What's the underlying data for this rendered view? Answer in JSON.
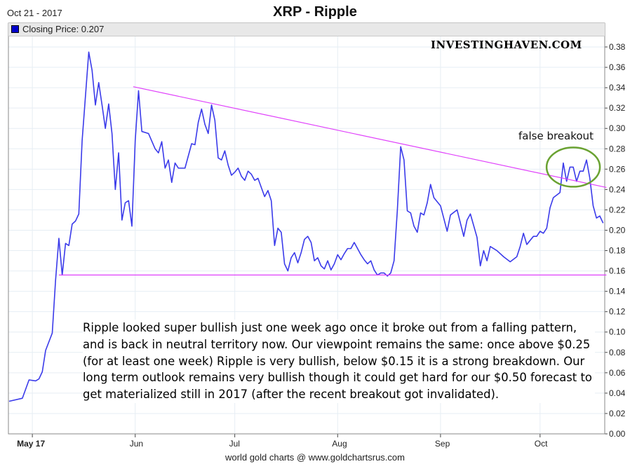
{
  "header": {
    "date": "Oct 21 - 2017",
    "title": "XRP - Ripple"
  },
  "legend": {
    "label": "Closing Price: 0.207",
    "color": "#0000cc"
  },
  "watermark": "INVESTINGHAVEN.COM",
  "annotation_label": "false breakout",
  "commentary": "Ripple looked super bullish just one week ago once it broke out from a falling pattern, and is back in neutral territory now. Our viewpoint remains the same: once above $0.25 (for at least one week) Ripple is very bullish, below $0.15 it is a strong breakdown. Our long term outlook remains very bullish though it could get hard for our $0.50 forecast to get materialized still in 2017 (after the recent breakout got invalidated).",
  "footer": "world gold charts @ www.goldchartsrus.com",
  "chart_data": {
    "type": "line",
    "title": "XRP - Ripple",
    "xlabel": "",
    "ylabel": "",
    "x_unit": "days since Apr 24, 2017",
    "xlim": [
      0,
      180
    ],
    "ylim": [
      0,
      0.39
    ],
    "yticks": [
      "0.00",
      "0.02",
      "0.04",
      "0.06",
      "0.08",
      "0.10",
      "0.12",
      "0.14",
      "0.16",
      "0.18",
      "0.20",
      "0.22",
      "0.24",
      "0.26",
      "0.28",
      "0.30",
      "0.32",
      "0.34",
      "0.36",
      "0.38"
    ],
    "xticks": [
      {
        "label": "May 17",
        "day": 7,
        "bold": true
      },
      {
        "label": "Jun",
        "day": 38
      },
      {
        "label": "Jul",
        "day": 68
      },
      {
        "label": "Aug",
        "day": 99
      },
      {
        "label": "Sep",
        "day": 130
      },
      {
        "label": "Oct",
        "day": 160
      }
    ],
    "grid": true,
    "series": [
      {
        "name": "Closing Price",
        "color": "#3b3bea",
        "points": [
          [
            0,
            0.032
          ],
          [
            4,
            0.035
          ],
          [
            6,
            0.053
          ],
          [
            8,
            0.052
          ],
          [
            9,
            0.054
          ],
          [
            10,
            0.061
          ],
          [
            11,
            0.082
          ],
          [
            13,
            0.099
          ],
          [
            14,
            0.151
          ],
          [
            15,
            0.192
          ],
          [
            16,
            0.156
          ],
          [
            17,
            0.187
          ],
          [
            18,
            0.185
          ],
          [
            19,
            0.206
          ],
          [
            20,
            0.209
          ],
          [
            21,
            0.216
          ],
          [
            22,
            0.288
          ],
          [
            24,
            0.375
          ],
          [
            25,
            0.357
          ],
          [
            26,
            0.323
          ],
          [
            27,
            0.345
          ],
          [
            28,
            0.323
          ],
          [
            29,
            0.3
          ],
          [
            30,
            0.324
          ],
          [
            31,
            0.295
          ],
          [
            32,
            0.24
          ],
          [
            33,
            0.276
          ],
          [
            34,
            0.21
          ],
          [
            35,
            0.227
          ],
          [
            36,
            0.229
          ],
          [
            37,
            0.204
          ],
          [
            38,
            0.288
          ],
          [
            39,
            0.337
          ],
          [
            40,
            0.297
          ],
          [
            42,
            0.295
          ],
          [
            44,
            0.28
          ],
          [
            45,
            0.276
          ],
          [
            46,
            0.287
          ],
          [
            47,
            0.261
          ],
          [
            48,
            0.269
          ],
          [
            49,
            0.247
          ],
          [
            50,
            0.266
          ],
          [
            51,
            0.261
          ],
          [
            53,
            0.261
          ],
          [
            55,
            0.285
          ],
          [
            56,
            0.284
          ],
          [
            57,
            0.306
          ],
          [
            58,
            0.319
          ],
          [
            59,
            0.304
          ],
          [
            60,
            0.295
          ],
          [
            61,
            0.323
          ],
          [
            62,
            0.308
          ],
          [
            63,
            0.271
          ],
          [
            64,
            0.269
          ],
          [
            65,
            0.278
          ],
          [
            66,
            0.264
          ],
          [
            67,
            0.254
          ],
          [
            68,
            0.257
          ],
          [
            69,
            0.261
          ],
          [
            70,
            0.253
          ],
          [
            71,
            0.249
          ],
          [
            72,
            0.258
          ],
          [
            73,
            0.255
          ],
          [
            74,
            0.249
          ],
          [
            75,
            0.251
          ],
          [
            76,
            0.242
          ],
          [
            77,
            0.233
          ],
          [
            78,
            0.239
          ],
          [
            79,
            0.229
          ],
          [
            80,
            0.185
          ],
          [
            81,
            0.202
          ],
          [
            82,
            0.198
          ],
          [
            83,
            0.167
          ],
          [
            84,
            0.16
          ],
          [
            85,
            0.173
          ],
          [
            86,
            0.178
          ],
          [
            87,
            0.168
          ],
          [
            88,
            0.178
          ],
          [
            89,
            0.191
          ],
          [
            90,
            0.194
          ],
          [
            91,
            0.188
          ],
          [
            92,
            0.17
          ],
          [
            93,
            0.173
          ],
          [
            94,
            0.165
          ],
          [
            95,
            0.162
          ],
          [
            96,
            0.17
          ],
          [
            97,
            0.161
          ],
          [
            98,
            0.167
          ],
          [
            99,
            0.176
          ],
          [
            100,
            0.171
          ],
          [
            101,
            0.177
          ],
          [
            102,
            0.182
          ],
          [
            103,
            0.182
          ],
          [
            104,
            0.188
          ],
          [
            105,
            0.182
          ],
          [
            106,
            0.176
          ],
          [
            107,
            0.171
          ],
          [
            108,
            0.167
          ],
          [
            109,
            0.17
          ],
          [
            110,
            0.161
          ],
          [
            111,
            0.156
          ],
          [
            112,
            0.158
          ],
          [
            113,
            0.158
          ],
          [
            114,
            0.155
          ],
          [
            115,
            0.158
          ],
          [
            116,
            0.17
          ],
          [
            117,
            0.22
          ],
          [
            118,
            0.282
          ],
          [
            119,
            0.269
          ],
          [
            120,
            0.219
          ],
          [
            121,
            0.217
          ],
          [
            122,
            0.204
          ],
          [
            123,
            0.198
          ],
          [
            124,
            0.217
          ],
          [
            125,
            0.215
          ],
          [
            126,
            0.227
          ],
          [
            127,
            0.245
          ],
          [
            128,
            0.232
          ],
          [
            130,
            0.224
          ],
          [
            132,
            0.199
          ],
          [
            133,
            0.215
          ],
          [
            135,
            0.22
          ],
          [
            137,
            0.194
          ],
          [
            138,
            0.21
          ],
          [
            139,
            0.216
          ],
          [
            141,
            0.193
          ],
          [
            142,
            0.165
          ],
          [
            143,
            0.18
          ],
          [
            144,
            0.17
          ],
          [
            145,
            0.184
          ],
          [
            147,
            0.18
          ],
          [
            149,
            0.174
          ],
          [
            151,
            0.169
          ],
          [
            153,
            0.174
          ],
          [
            154,
            0.184
          ],
          [
            155,
            0.197
          ],
          [
            156,
            0.186
          ],
          [
            158,
            0.194
          ],
          [
            159,
            0.194
          ],
          [
            160,
            0.199
          ],
          [
            161,
            0.197
          ],
          [
            162,
            0.202
          ],
          [
            163,
            0.222
          ],
          [
            164,
            0.232
          ],
          [
            166,
            0.237
          ],
          [
            167,
            0.266
          ],
          [
            168,
            0.248
          ],
          [
            169,
            0.262
          ],
          [
            170,
            0.262
          ],
          [
            171,
            0.248
          ],
          [
            172,
            0.258
          ],
          [
            173,
            0.258
          ],
          [
            174,
            0.269
          ],
          [
            175,
            0.251
          ],
          [
            176,
            0.224
          ],
          [
            177,
            0.212
          ],
          [
            178,
            0.214
          ],
          [
            179,
            0.207
          ]
        ]
      }
    ],
    "trendlines": [
      {
        "name": "falling-resistance",
        "color": "#e040fb",
        "from": [
          37.4,
          0.341
        ],
        "to": [
          180,
          0.242
        ]
      },
      {
        "name": "support",
        "color": "#e040fb",
        "from": [
          15,
          0.156
        ],
        "to": [
          180,
          0.156
        ]
      }
    ],
    "highlight": {
      "shape": "ellipse",
      "color": "#6aa232",
      "center": [
        170,
        0.262
      ],
      "label": "false breakout"
    }
  }
}
